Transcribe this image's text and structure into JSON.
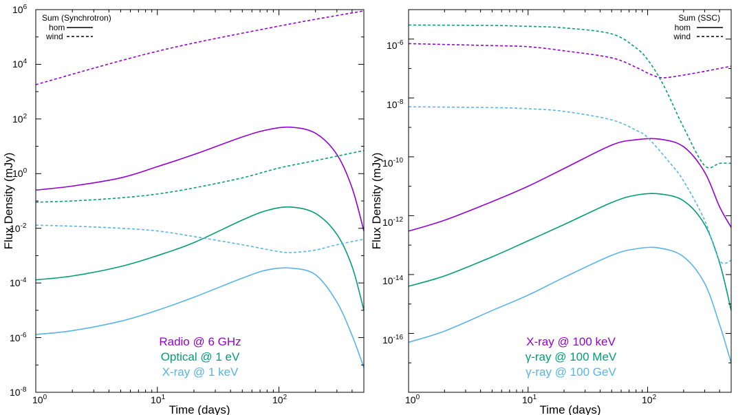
{
  "chart_data": [
    {
      "type": "line",
      "xlabel": "Time (days)",
      "ylabel": "Flux Density (mJy)",
      "xscale": "log",
      "yscale": "log",
      "xlim": [
        1,
        500
      ],
      "ylim": [
        1e-08,
        1000000.0
      ],
      "xticks": [
        {
          "base": "10",
          "exp": "0",
          "value": 1
        },
        {
          "base": "10",
          "exp": "1",
          "value": 10
        },
        {
          "base": "10",
          "exp": "2",
          "value": 100
        }
      ],
      "yticks": [
        {
          "base": "10",
          "exp": "-8",
          "value": 1e-08
        },
        {
          "base": "10",
          "exp": "-6",
          "value": 1e-06
        },
        {
          "base": "10",
          "exp": "-4",
          "value": 0.0001
        },
        {
          "base": "10",
          "exp": "-2",
          "value": 0.01
        },
        {
          "base": "10",
          "exp": "0",
          "value": 1
        },
        {
          "base": "10",
          "exp": "2",
          "value": 100
        },
        {
          "base": "10",
          "exp": "4",
          "value": 10000.0
        },
        {
          "base": "10",
          "exp": "6",
          "value": 1000000.0
        }
      ],
      "legend": {
        "title": "Sum (Synchrotron)",
        "entries": [
          {
            "label": "hom",
            "style": "solid"
          },
          {
            "label": "wind",
            "style": "dashed"
          }
        ],
        "position": "top-left"
      },
      "annotations": [
        {
          "text": "Radio @ 6 GHz",
          "color": "#9400d3"
        },
        {
          "text": "Optical @ 1 eV",
          "color": "#009e73"
        },
        {
          "text": "X-ray @ 1 keV",
          "color": "#56b4e9"
        }
      ],
      "series": [
        {
          "name": "Radio @ 6 GHz (hom)",
          "color": "#9400d3",
          "style": "solid",
          "x": [
            1,
            2,
            5,
            10,
            20,
            50,
            80,
            125,
            200,
            300,
            400,
            500
          ],
          "y": [
            0.25,
            0.35,
            0.7,
            1.8,
            5,
            22,
            40,
            50,
            30,
            5,
            0.3,
            0.008
          ]
        },
        {
          "name": "Radio @ 6 GHz (wind)",
          "color": "#9400d3",
          "style": "dashed",
          "x": [
            1,
            10,
            100,
            500
          ],
          "y": [
            1800,
            30000,
            250000,
            900000
          ]
        },
        {
          "name": "Optical @ 1 eV (hom)",
          "color": "#009e73",
          "style": "solid",
          "x": [
            1,
            2,
            5,
            10,
            20,
            50,
            80,
            125,
            200,
            300,
            400,
            500
          ],
          "y": [
            0.00013,
            0.00018,
            0.0004,
            0.001,
            0.003,
            0.02,
            0.045,
            0.06,
            0.035,
            0.006,
            0.0004,
            1e-05
          ]
        },
        {
          "name": "Optical @ 1 eV (wind)",
          "color": "#009e73",
          "style": "dashed",
          "x": [
            1,
            2,
            5,
            10,
            20,
            50,
            100,
            200,
            500
          ],
          "y": [
            0.09,
            0.1,
            0.13,
            0.18,
            0.3,
            0.7,
            1.6,
            3,
            7
          ]
        },
        {
          "name": "X-ray @ 1 keV (hom)",
          "color": "#56b4e9",
          "style": "solid",
          "x": [
            1,
            2,
            5,
            10,
            20,
            50,
            80,
            125,
            200,
            300,
            400,
            500
          ],
          "y": [
            1.3e-06,
            1.8e-06,
            4e-06,
            1e-05,
            3e-05,
            0.00015,
            0.0003,
            0.00035,
            0.0002,
            2e-05,
            1.2e-06,
            8e-08
          ]
        },
        {
          "name": "X-ray @ 1 keV (wind)",
          "color": "#56b4e9",
          "style": "dashed",
          "x": [
            1,
            2,
            5,
            10,
            20,
            50,
            100,
            130,
            200,
            300,
            500
          ],
          "y": [
            0.013,
            0.012,
            0.01,
            0.008,
            0.005,
            0.0025,
            0.0014,
            0.0013,
            0.0016,
            0.0025,
            0.004
          ]
        }
      ]
    },
    {
      "type": "line",
      "xlabel": "Time (days)",
      "ylabel": "Flux Density (mJy)",
      "xscale": "log",
      "yscale": "log",
      "xlim": [
        1,
        500
      ],
      "ylim": [
        1e-18,
        1e-05
      ],
      "xticks": [
        {
          "base": "10",
          "exp": "0",
          "value": 1
        },
        {
          "base": "10",
          "exp": "1",
          "value": 10
        },
        {
          "base": "10",
          "exp": "2",
          "value": 100
        }
      ],
      "yticks": [
        {
          "base": "10",
          "exp": "-16",
          "value": 1e-16
        },
        {
          "base": "10",
          "exp": "-14",
          "value": 1e-14
        },
        {
          "base": "10",
          "exp": "-12",
          "value": 1e-12
        },
        {
          "base": "10",
          "exp": "-10",
          "value": 1e-10
        },
        {
          "base": "10",
          "exp": "-8",
          "value": 1e-08
        },
        {
          "base": "10",
          "exp": "-6",
          "value": 1e-06
        }
      ],
      "legend": {
        "title": "Sum (SSC)",
        "entries": [
          {
            "label": "hom",
            "style": "solid"
          },
          {
            "label": "wind",
            "style": "dashed"
          }
        ],
        "position": "top-right"
      },
      "annotations": [
        {
          "text": "X-ray @ 100 keV",
          "color": "#9400d3"
        },
        {
          "text": "γ-ray @ 100 MeV",
          "color": "#009e73"
        },
        {
          "text": "γ-ray @ 100 GeV",
          "color": "#56b4e9"
        }
      ],
      "series": [
        {
          "name": "X-ray @ 100 keV (hom)",
          "color": "#9400d3",
          "style": "solid",
          "x": [
            1,
            2,
            5,
            10,
            20,
            50,
            80,
            125,
            200,
            300,
            400,
            500
          ],
          "y": [
            3e-13,
            7e-13,
            3e-12,
            1e-11,
            4e-11,
            2.5e-10,
            3.8e-10,
            4e-10,
            2.2e-10,
            3e-11,
            2e-12,
            4e-13
          ]
        },
        {
          "name": "X-ray @ 100 keV (wind)",
          "color": "#9400d3",
          "style": "dashed",
          "x": [
            1,
            5,
            10,
            20,
            50,
            80,
            100,
            125,
            150,
            200,
            300,
            500
          ],
          "y": [
            7e-07,
            6e-07,
            5.5e-07,
            4e-07,
            2.3e-07,
            1.1e-07,
            7e-08,
            5e-08,
            5e-08,
            6e-08,
            8e-08,
            1.2e-07
          ]
        },
        {
          "name": "γ-ray @ 100 MeV (hom)",
          "color": "#009e73",
          "style": "solid",
          "x": [
            1,
            2,
            5,
            10,
            20,
            50,
            80,
            125,
            200,
            300,
            400,
            500
          ],
          "y": [
            4e-15,
            9e-15,
            4e-14,
            1.4e-13,
            5e-13,
            2.8e-12,
            5e-12,
            5.5e-12,
            3.2e-12,
            5e-13,
            2.5e-14,
            6e-16
          ]
        },
        {
          "name": "γ-ray @ 100 MeV (wind)",
          "color": "#009e73",
          "style": "dashed",
          "x": [
            1,
            5,
            10,
            20,
            50,
            80,
            100,
            125,
            150,
            200,
            300,
            400,
            500
          ],
          "y": [
            3e-06,
            2.9e-06,
            2.7e-06,
            2.4e-06,
            1.5e-06,
            5e-07,
            2e-07,
            5e-08,
            1.2e-08,
            1e-09,
            5e-11,
            6e-11,
            6e-11
          ]
        },
        {
          "name": "γ-ray @ 100 GeV (hom)",
          "color": "#56b4e9",
          "style": "solid",
          "x": [
            1,
            2,
            5,
            10,
            20,
            50,
            80,
            125,
            200,
            300,
            400,
            500
          ],
          "y": [
            5e-17,
            1.2e-16,
            6e-16,
            2e-15,
            8e-15,
            4.5e-14,
            7.5e-14,
            8e-14,
            4e-14,
            5e-15,
            2e-16,
            1e-17
          ]
        },
        {
          "name": "γ-ray @ 100 GeV (wind)",
          "color": "#56b4e9",
          "style": "dashed",
          "x": [
            1,
            5,
            10,
            20,
            50,
            80,
            100,
            150,
            200,
            300,
            400,
            500
          ],
          "y": [
            5e-09,
            4.7e-09,
            4.3e-09,
            3.5e-09,
            1.8e-09,
            8e-10,
            4.5e-10,
            7e-11,
            1.5e-11,
            7e-13,
            3e-14,
            3e-14
          ]
        }
      ]
    }
  ]
}
